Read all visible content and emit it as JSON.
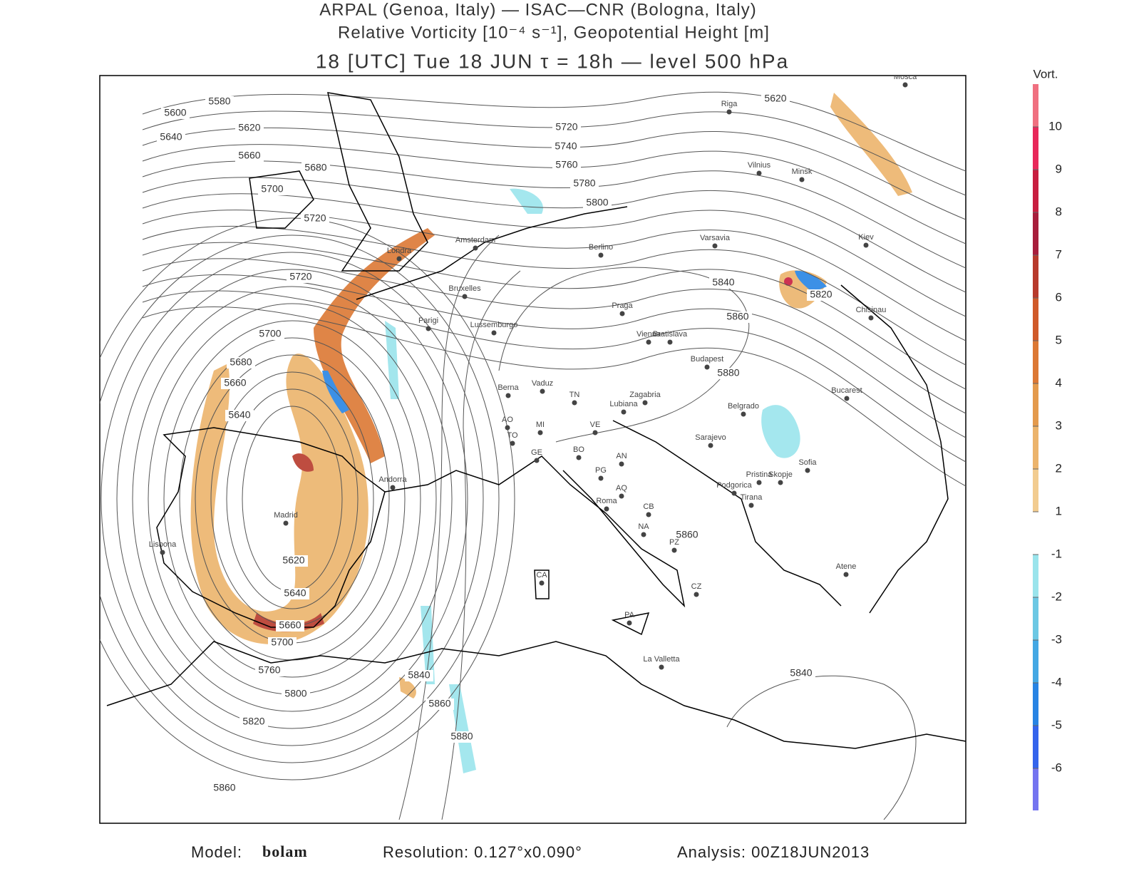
{
  "header": {
    "line1": "ARPAL (Genoa, Italy)  —  ISAC—CNR (Bologna, Italy)",
    "line2": "Relative Vorticity [10⁻⁴ s⁻¹], Geopotential Height [m]",
    "line3": "18 [UTC] Tue 18 JUN   τ = 18h   —   level 500 hPa"
  },
  "map": {
    "contour_labels": [
      "5580",
      "5600",
      "5620",
      "5640",
      "5660",
      "5680",
      "5700",
      "5720",
      "5720",
      "5700",
      "5680",
      "5660",
      "5640",
      "5620",
      "5640",
      "5660",
      "5700",
      "5760",
      "5800",
      "5820",
      "5860",
      "5840",
      "5860",
      "5880",
      "5860",
      "5840",
      "5860",
      "5880",
      "5820",
      "5620",
      "5840",
      "5720",
      "5740",
      "5760",
      "5780",
      "5800"
    ],
    "cities": [
      "Mosca",
      "Riga",
      "Vilnius",
      "Minsk",
      "Varsavia",
      "Kiev",
      "Berlino",
      "Amsterdam",
      "Londra",
      "Bruxelles",
      "Praga",
      "Chisinau",
      "Parigi",
      "Lussemburgo",
      "Vienna",
      "Bratislava",
      "Budapest",
      "Berna",
      "Vaduz",
      "TN",
      "Zagabria",
      "Lubiana",
      "Bucarest",
      "Belgrado",
      "AO",
      "MI",
      "TO",
      "VE",
      "Sarajevo",
      "BO",
      "GE",
      "Sofia",
      "AN",
      "Pristina",
      "Skopje",
      "Andorra",
      "PG",
      "Podgorica",
      "AQ",
      "Tirana",
      "Roma",
      "CB",
      "Madrid",
      "NA",
      "PZ",
      "Lisbona",
      "Atene",
      "CA",
      "CZ",
      "PA",
      "La Valletta"
    ]
  },
  "colorbar": {
    "title": "Vort.",
    "ticks": [
      10,
      9,
      8,
      7,
      6,
      5,
      4,
      3,
      2,
      1,
      -1,
      -2,
      -3,
      -4,
      -5,
      -6
    ],
    "colors": [
      "#f07080",
      "#e8285a",
      "#c81e40",
      "#a81e3c",
      "#b83a2c",
      "#d05a2a",
      "#dc7834",
      "#e49a4c",
      "#ecb46c",
      "#f2cc90",
      "#ffffff",
      "#9ae4ec",
      "#6cc8e4",
      "#44a8e4",
      "#2884e4",
      "#3464ec",
      "#7474f0"
    ]
  },
  "footer": {
    "model_label": "Model:",
    "model": "bolam",
    "resolution": "Resolution: 0.127°x0.090°",
    "analysis": "Analysis: 00Z18JUN2013"
  }
}
